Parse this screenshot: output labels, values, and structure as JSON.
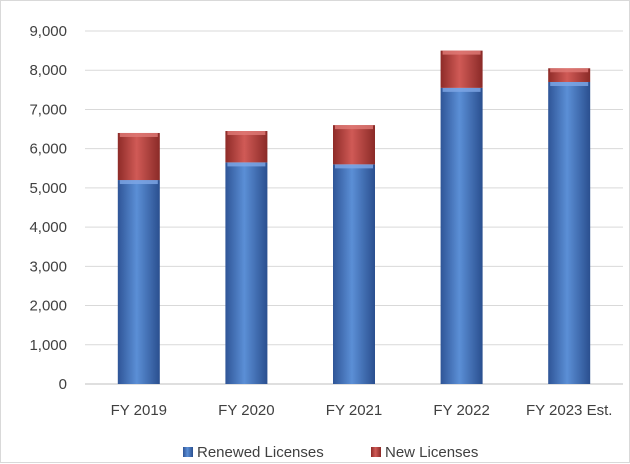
{
  "chart_data": {
    "type": "bar",
    "stacked": true,
    "categories": [
      "FY 2019",
      "FY 2020",
      "FY 2021",
      "FY 2022",
      "FY 2023 Est."
    ],
    "series": [
      {
        "name": "Renewed Licenses",
        "values": [
          5200,
          5650,
          5600,
          7550,
          7700
        ],
        "color": "#4472c4"
      },
      {
        "name": "New Licenses",
        "values": [
          1200,
          800,
          1000,
          950,
          350
        ],
        "color": "#c0504d"
      }
    ],
    "ylim": [
      0,
      9000
    ],
    "yticks": [
      "0",
      "1,000",
      "2,000",
      "3,000",
      "4,000",
      "5,000",
      "6,000",
      "7,000",
      "8,000",
      "9,000"
    ],
    "grid": true,
    "legend": "bottom",
    "title": "",
    "xlabel": "",
    "ylabel": ""
  }
}
